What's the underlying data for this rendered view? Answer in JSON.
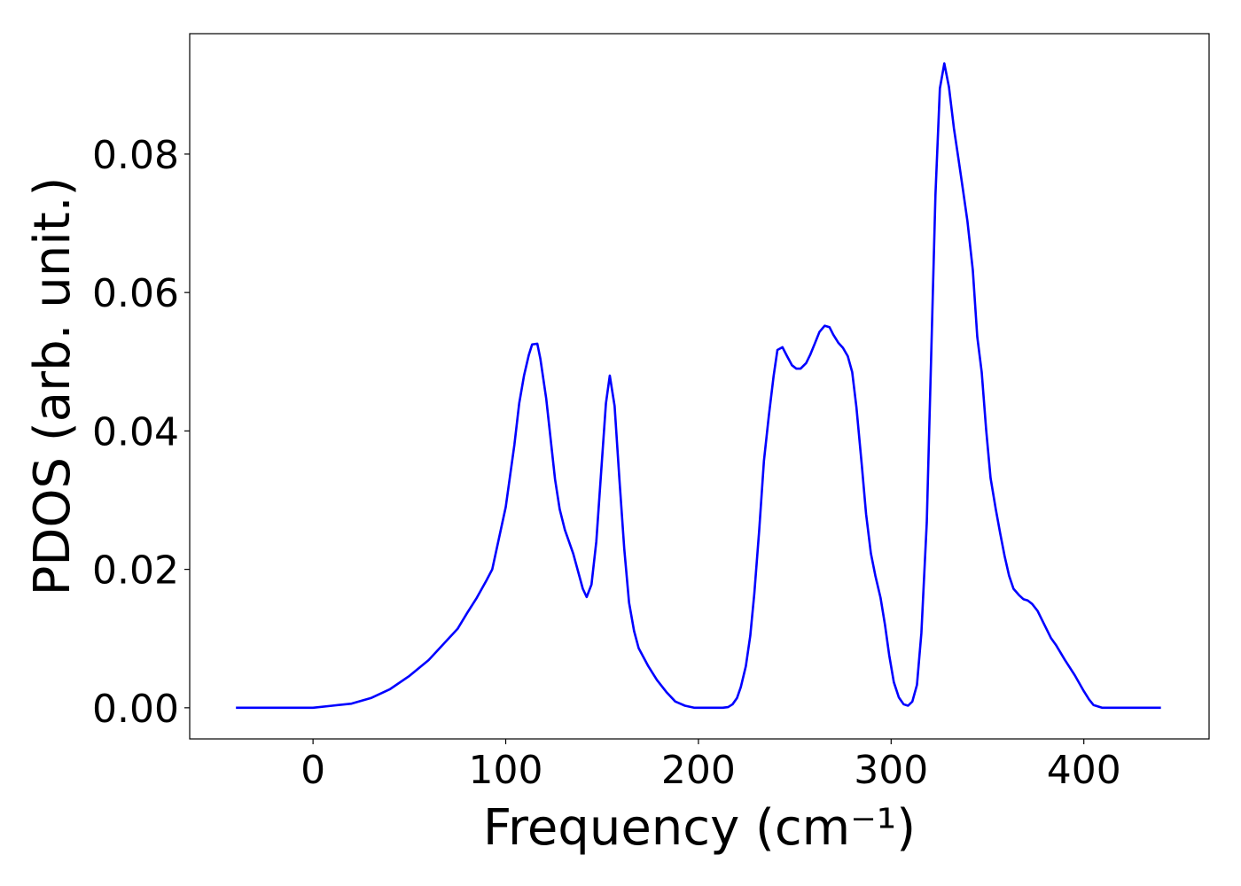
{
  "chart_data": {
    "type": "line",
    "x_label": "Frequency (cm⁻¹)",
    "y_label": "PDOS (arb. unit.)",
    "xlim": [
      -64,
      465
    ],
    "ylim": [
      -0.0045,
      0.0974
    ],
    "xticks": [
      0,
      100,
      200,
      300,
      400
    ],
    "yticks": [
      {
        "value": 0,
        "label": "0.00"
      },
      0.02,
      0.04,
      0.06,
      0.08
    ],
    "series": [
      {
        "color": "#0000ff",
        "x": [
          -40,
          -20,
          0,
          10,
          20,
          30,
          40,
          50,
          60,
          70,
          75,
          80,
          85,
          90,
          93,
          100,
          104.5,
          107,
          109.5,
          112,
          113.7,
          116.4,
          118,
          121,
          125.6,
          128,
          130.7,
          135,
          140,
          142,
          144.5,
          147,
          149.5,
          152,
          154,
          156.5,
          159,
          161.5,
          164,
          166.6,
          169,
          174,
          178.5,
          183.6,
          188,
          193,
          198,
          212.6,
          215.4,
          217.7,
          220,
          222,
          224.6,
          226.9,
          229,
          231.5,
          234,
          236.5,
          239,
          241,
          243.6,
          246,
          248.5,
          250.8,
          253,
          255.9,
          258,
          260.5,
          262.8,
          265.5,
          268,
          270,
          272.7,
          275,
          277.5,
          279.8,
          282,
          284.8,
          287,
          289.5,
          291.8,
          294.5,
          296.8,
          299,
          301.4,
          304,
          306.5,
          308.8,
          311,
          313.4,
          315.7,
          318.5,
          320.8,
          323,
          325.3,
          327.6,
          330,
          332.6,
          335,
          337.3,
          339.6,
          342.4,
          344.7,
          347,
          349.3,
          351.6,
          354.3,
          356.6,
          358.9,
          361.2,
          363.5,
          366.3,
          368.6,
          370.9,
          373.2,
          376,
          378.3,
          380.6,
          382.9,
          385.7,
          390.2,
          395.3,
          400,
          402.7,
          405,
          409.6,
          420,
          440
        ],
        "values": [
          0,
          0,
          0,
          0.0003,
          0.0006,
          0.0014,
          0.0027,
          0.0046,
          0.0069,
          0.0099,
          0.0114,
          0.0137,
          0.0159,
          0.0184,
          0.02,
          0.029,
          0.038,
          0.044,
          0.048,
          0.051,
          0.0525,
          0.0526,
          0.0504,
          0.0447,
          0.033,
          0.0287,
          0.0257,
          0.0223,
          0.0172,
          0.016,
          0.0178,
          0.024,
          0.034,
          0.044,
          0.048,
          0.0436,
          0.033,
          0.023,
          0.0152,
          0.0111,
          0.0086,
          0.006,
          0.004,
          0.0022,
          0.0009,
          0.0003,
          0,
          0,
          0.0001,
          0.0005,
          0.0014,
          0.003,
          0.006,
          0.0104,
          0.0165,
          0.0255,
          0.0357,
          0.0421,
          0.0479,
          0.0517,
          0.0521,
          0.0508,
          0.0495,
          0.049,
          0.049,
          0.0498,
          0.051,
          0.0527,
          0.0543,
          0.0552,
          0.055,
          0.0539,
          0.0527,
          0.052,
          0.0508,
          0.0485,
          0.0434,
          0.035,
          0.028,
          0.0223,
          0.0191,
          0.0159,
          0.012,
          0.0076,
          0.0037,
          0.0015,
          0.0005,
          0.0003,
          0.0009,
          0.0033,
          0.0108,
          0.0268,
          0.051,
          0.0741,
          0.0895,
          0.0931,
          0.0897,
          0.0837,
          0.0792,
          0.0748,
          0.0703,
          0.0632,
          0.0536,
          0.0485,
          0.0402,
          0.0332,
          0.0287,
          0.0252,
          0.0219,
          0.0191,
          0.0172,
          0.0163,
          0.0157,
          0.0155,
          0.015,
          0.014,
          0.0127,
          0.0114,
          0.0101,
          0.009,
          0.0069,
          0.0047,
          0.0024,
          0.0012,
          0.0004,
          0,
          0,
          0
        ]
      }
    ]
  }
}
